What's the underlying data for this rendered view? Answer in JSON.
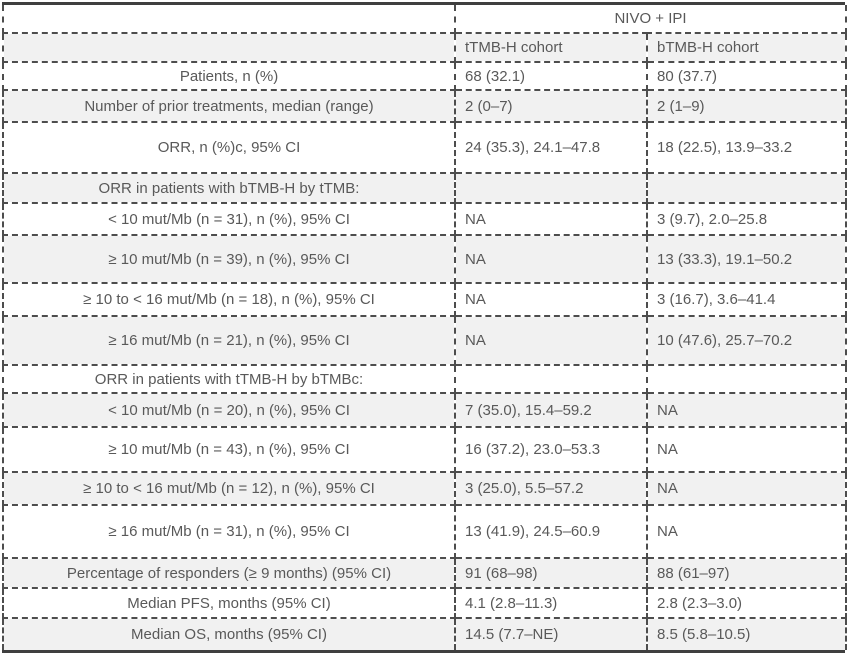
{
  "colors": {
    "row_shade": "#f1f1f1",
    "border_dashed": "#4d4d4d",
    "border_solid": "#3f3f3f",
    "text": "#595959",
    "page_bg": "#ffffff"
  },
  "chart_data": {
    "type": "table",
    "group_header": "NIVO + IPI",
    "column_headers": [
      "tTMB-H cohort",
      "bTMB-H cohort"
    ],
    "rows": [
      {
        "label": "Patients, n (%)",
        "ttmb": "68 (32.1)",
        "btmb": "80 (37.7)"
      },
      {
        "label": "Number of prior treatments, median (range)",
        "ttmb": "2 (0–7)",
        "btmb": "2 (1–9)"
      },
      {
        "label": "ORR, n (%)c, 95% CI",
        "ttmb": "24 (35.3), 24.1–47.8",
        "btmb": "18 (22.5), 13.9–33.2"
      },
      {
        "label": "ORR in patients with bTMB-H by tTMB:",
        "ttmb": "",
        "btmb": ""
      },
      {
        "label": "< 10 mut/Mb (n = 31), n (%), 95% CI",
        "ttmb": "NA",
        "btmb": "3 (9.7), 2.0–25.8"
      },
      {
        "label": "≥ 10 mut/Mb (n = 39), n (%), 95% CI",
        "ttmb": "NA",
        "btmb": "13 (33.3), 19.1–50.2"
      },
      {
        "label": "≥ 10 to < 16 mut/Mb (n = 18), n (%), 95% CI",
        "ttmb": "NA",
        "btmb": "3 (16.7), 3.6–41.4"
      },
      {
        "label": "≥ 16 mut/Mb (n = 21), n (%), 95% CI",
        "ttmb": "NA",
        "btmb": "10 (47.6), 25.7–70.2"
      },
      {
        "label": "ORR in patients with tTMB-H by bTMBc:",
        "ttmb": "",
        "btmb": ""
      },
      {
        "label": "< 10 mut/Mb (n = 20), n (%), 95% CI",
        "ttmb": "7 (35.0), 15.4–59.2",
        "btmb": "NA"
      },
      {
        "label": "≥ 10 mut/Mb (n = 43), n (%), 95% CI",
        "ttmb": "16 (37.2), 23.0–53.3",
        "btmb": "NA"
      },
      {
        "label": "≥ 10 to < 16 mut/Mb (n = 12), n (%), 95% CI",
        "ttmb": "3 (25.0), 5.5–57.2",
        "btmb": "NA"
      },
      {
        "label": "≥ 16 mut/Mb (n = 31), n (%), 95% CI",
        "ttmb": "13 (41.9), 24.5–60.9",
        "btmb": "NA"
      },
      {
        "label": "Percentage of responders (≥ 9 months) (95% CI)",
        "ttmb": "91 (68–98)",
        "btmb": "88 (61–97)"
      },
      {
        "label": "Median PFS, months (95% CI)",
        "ttmb": "4.1 (2.8–11.3)",
        "btmb": "2.8 (2.3–3.0)"
      },
      {
        "label": "Median OS, months (95% CI)",
        "ttmb": "14.5 (7.7–NE)",
        "btmb": "8.5 (5.8–10.5)"
      }
    ]
  }
}
